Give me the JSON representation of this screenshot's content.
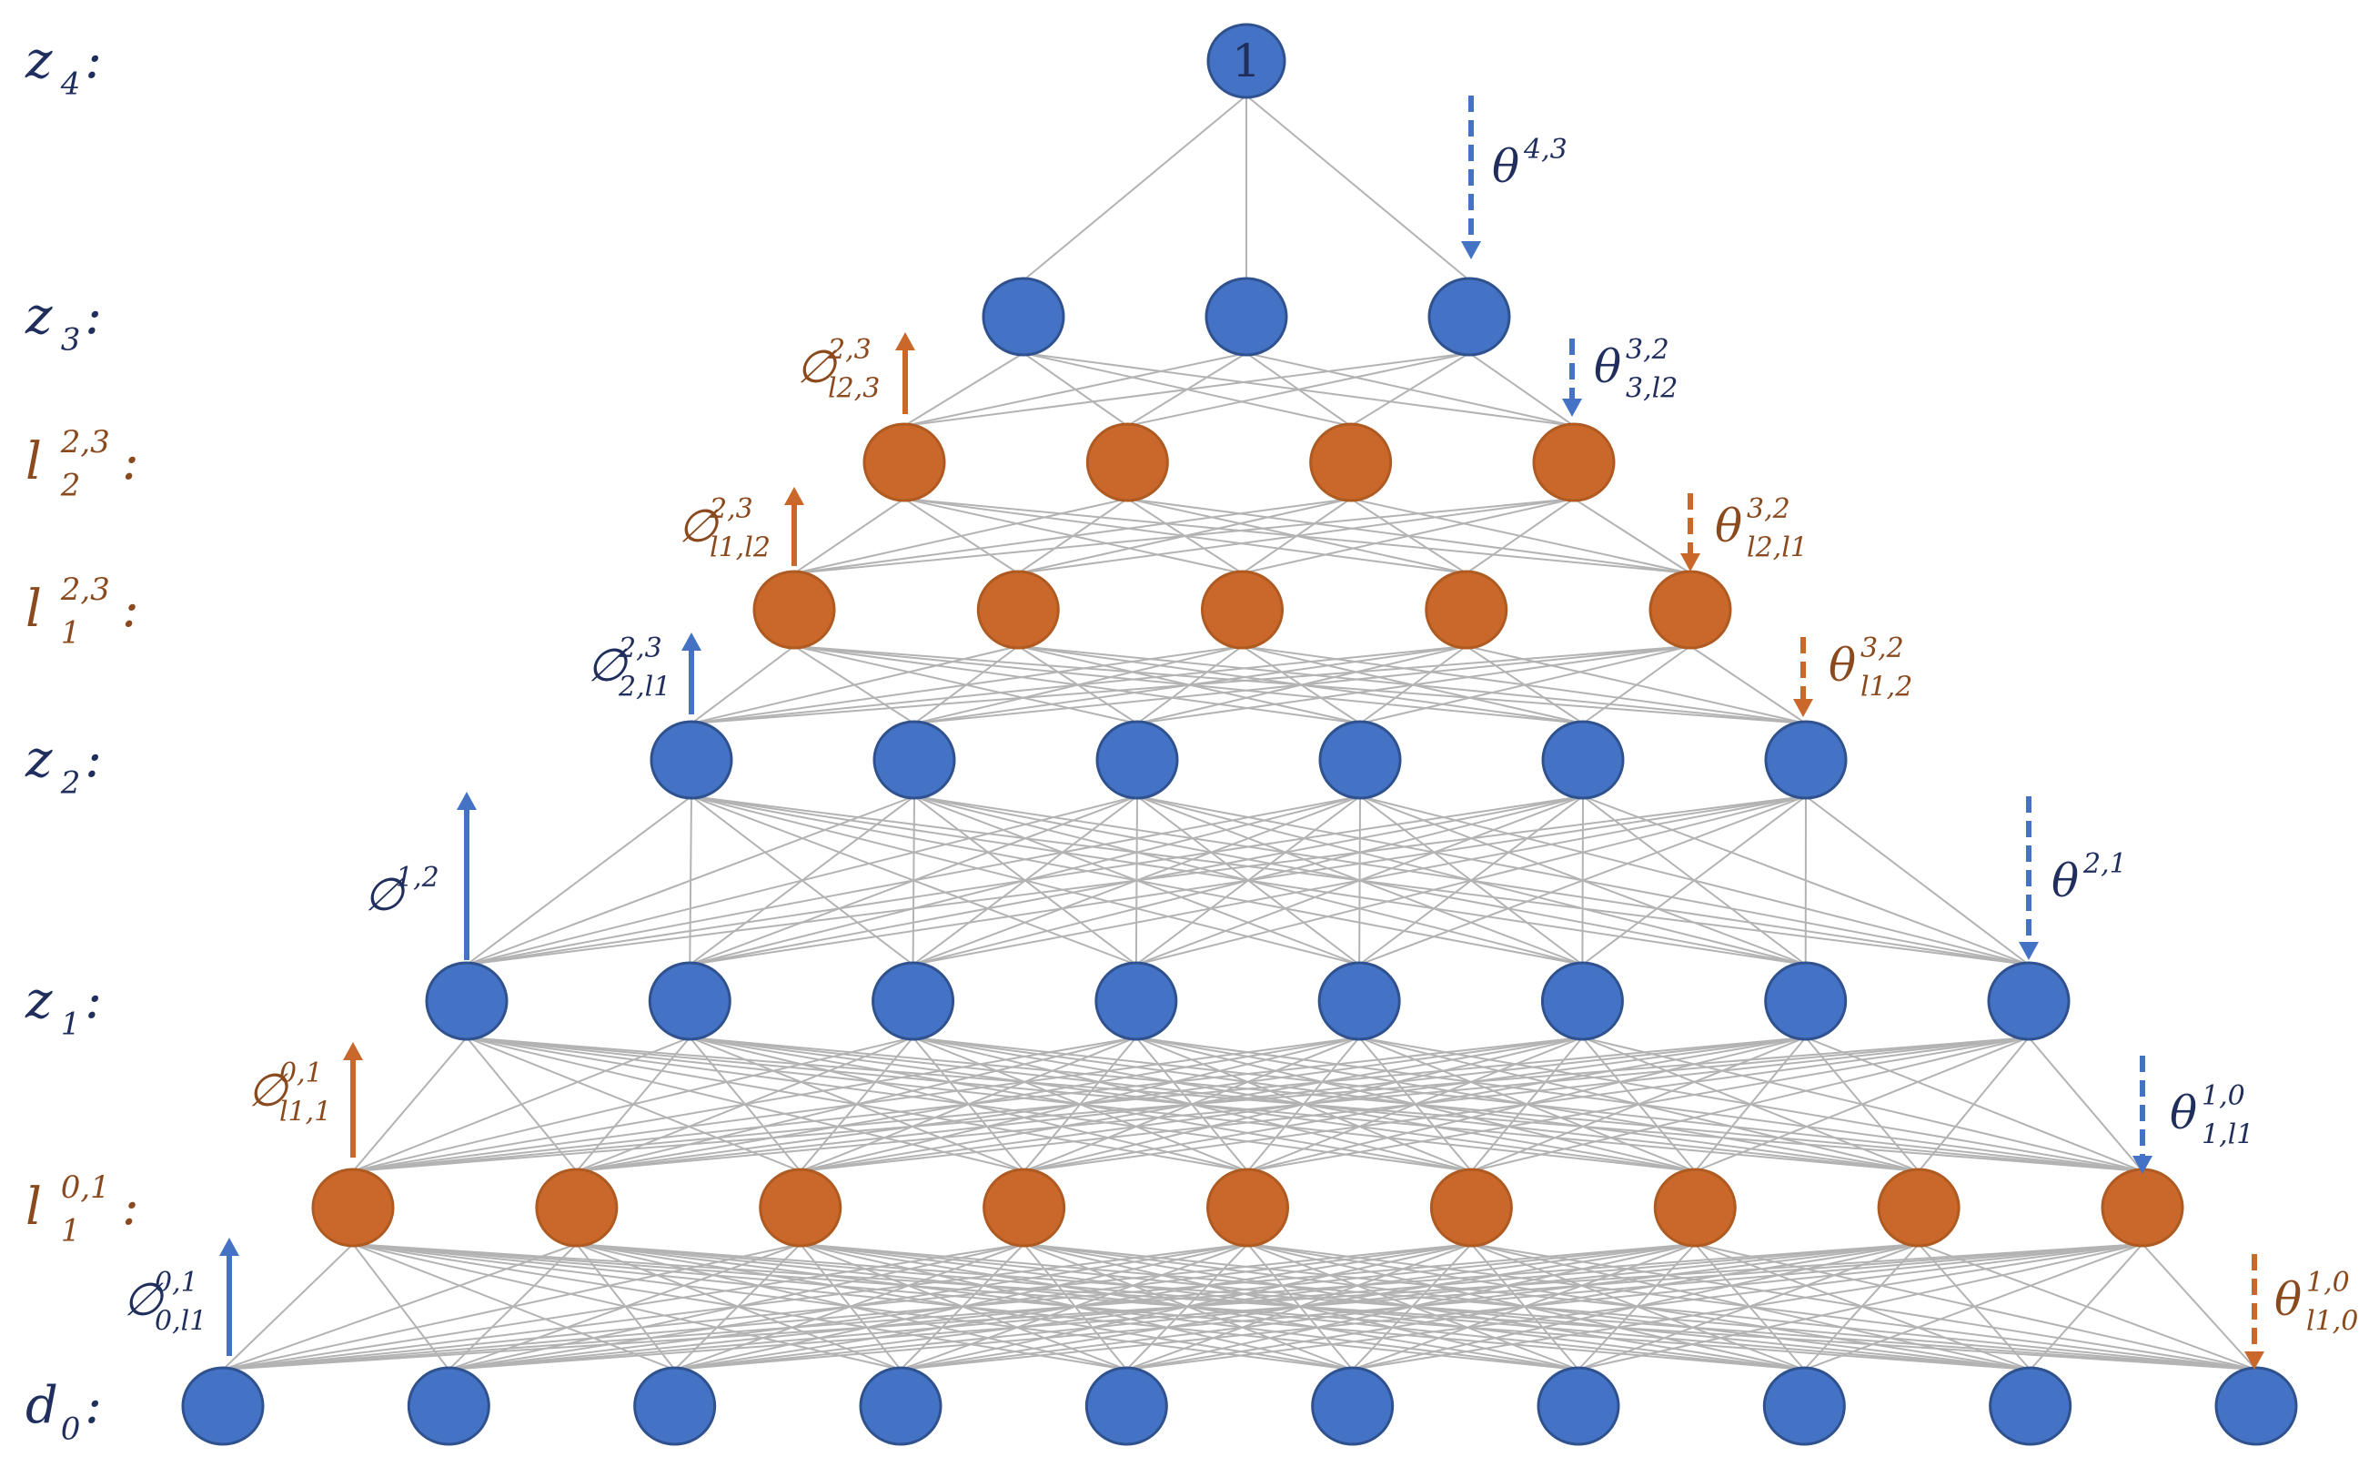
{
  "colors": {
    "z_fill": "#4472c4",
    "z_stroke": "#2f528f",
    "l_fill": "#c9682a",
    "l_stroke": "#ae5a21",
    "edge": "#b3b3b3",
    "z_text": "#1f2e5c",
    "l_text": "#8b4a1e"
  },
  "layers": [
    {
      "id": "d0",
      "kind": "z",
      "label": {
        "base": "d",
        "sub": "0",
        "sup": "",
        "suffix": ":"
      },
      "count": 10
    },
    {
      "id": "l1_01",
      "kind": "l",
      "label": {
        "base": "l",
        "sub": "1",
        "sup": "0,1",
        "suffix": ":"
      },
      "count": 9
    },
    {
      "id": "z1",
      "kind": "z",
      "label": {
        "base": "z",
        "sub": "1",
        "sup": "",
        "suffix": ":"
      },
      "count": 8
    },
    {
      "id": "z2",
      "kind": "z",
      "label": {
        "base": "z",
        "sub": "2",
        "sup": "",
        "suffix": ":"
      },
      "count": 6
    },
    {
      "id": "l1_23",
      "kind": "l",
      "label": {
        "base": "l",
        "sub": "1",
        "sup": "2,3",
        "suffix": ":"
      },
      "count": 5
    },
    {
      "id": "l2_23",
      "kind": "l",
      "label": {
        "base": "l",
        "sub": "2",
        "sup": "2,3",
        "suffix": ":"
      },
      "count": 4
    },
    {
      "id": "z3",
      "kind": "z",
      "label": {
        "base": "z",
        "sub": "3",
        "sup": "",
        "suffix": ":"
      },
      "count": 3
    },
    {
      "id": "z4",
      "kind": "z",
      "label": {
        "base": "z",
        "sub": "4",
        "sup": "",
        "suffix": ":"
      },
      "count": 1,
      "node_text": "1"
    }
  ],
  "connections": [
    [
      "d0",
      "l1_01"
    ],
    [
      "l1_01",
      "z1"
    ],
    [
      "z1",
      "z2"
    ],
    [
      "z2",
      "l1_23"
    ],
    [
      "l1_23",
      "l2_23"
    ],
    [
      "l2_23",
      "z3"
    ],
    [
      "z3",
      "z4"
    ]
  ],
  "parameters": [
    {
      "id": "phi_0_l1",
      "symbol": "∅",
      "sup": "0,1",
      "sub": "0,l1",
      "direction": "up",
      "dashed": false,
      "kind": "z",
      "layer": "d0",
      "side": "left"
    },
    {
      "id": "theta_l1_0",
      "symbol": "θ",
      "sup": "1,0",
      "sub": "l1,0",
      "direction": "down",
      "dashed": true,
      "kind": "l",
      "layer": "d0",
      "side": "right"
    },
    {
      "id": "phi_l1_1",
      "symbol": "∅",
      "sup": "0,1",
      "sub": "l1,1",
      "direction": "up",
      "dashed": false,
      "kind": "l",
      "layer": "l1_01",
      "side": "left"
    },
    {
      "id": "theta_1_l1",
      "symbol": "θ",
      "sup": "1,0",
      "sub": "1,l1",
      "direction": "down",
      "dashed": true,
      "kind": "z",
      "layer": "l1_01",
      "side": "right"
    },
    {
      "id": "phi_1_2",
      "symbol": "∅",
      "sup": "1,2",
      "sub": "",
      "direction": "up",
      "dashed": false,
      "kind": "z",
      "layer": "z1",
      "side": "left"
    },
    {
      "id": "theta_2_1",
      "symbol": "θ",
      "sup": "2,1",
      "sub": "",
      "direction": "down",
      "dashed": true,
      "kind": "z",
      "layer": "z1",
      "side": "right"
    },
    {
      "id": "phi_2_l1",
      "symbol": "∅",
      "sup": "2,3",
      "sub": "2,l1",
      "direction": "up",
      "dashed": false,
      "kind": "z",
      "layer": "z2",
      "side": "left"
    },
    {
      "id": "theta_l1_2",
      "symbol": "θ",
      "sup": "3,2",
      "sub": "l1,2",
      "direction": "down",
      "dashed": true,
      "kind": "l",
      "layer": "z2",
      "side": "right"
    },
    {
      "id": "phi_l1_l2",
      "symbol": "∅",
      "sup": "2,3",
      "sub": "l1,l2",
      "direction": "up",
      "dashed": false,
      "kind": "l",
      "layer": "l1_23",
      "side": "left"
    },
    {
      "id": "theta_l2_l1",
      "symbol": "θ",
      "sup": "3,2",
      "sub": "l2,l1",
      "direction": "down",
      "dashed": true,
      "kind": "l",
      "layer": "l1_23",
      "side": "right"
    },
    {
      "id": "phi_l2_3",
      "symbol": "∅",
      "sup": "2,3",
      "sub": "l2,3",
      "direction": "up",
      "dashed": false,
      "kind": "l",
      "layer": "l2_23",
      "side": "left"
    },
    {
      "id": "theta_3_l2",
      "symbol": "θ",
      "sup": "3,2",
      "sub": "3,l2",
      "direction": "down",
      "dashed": true,
      "kind": "z",
      "layer": "l2_23",
      "side": "right"
    },
    {
      "id": "theta_4_3",
      "symbol": "θ",
      "sup": "4,3",
      "sub": "",
      "direction": "down",
      "dashed": true,
      "kind": "z",
      "layer": "z3",
      "side": "right"
    }
  ]
}
